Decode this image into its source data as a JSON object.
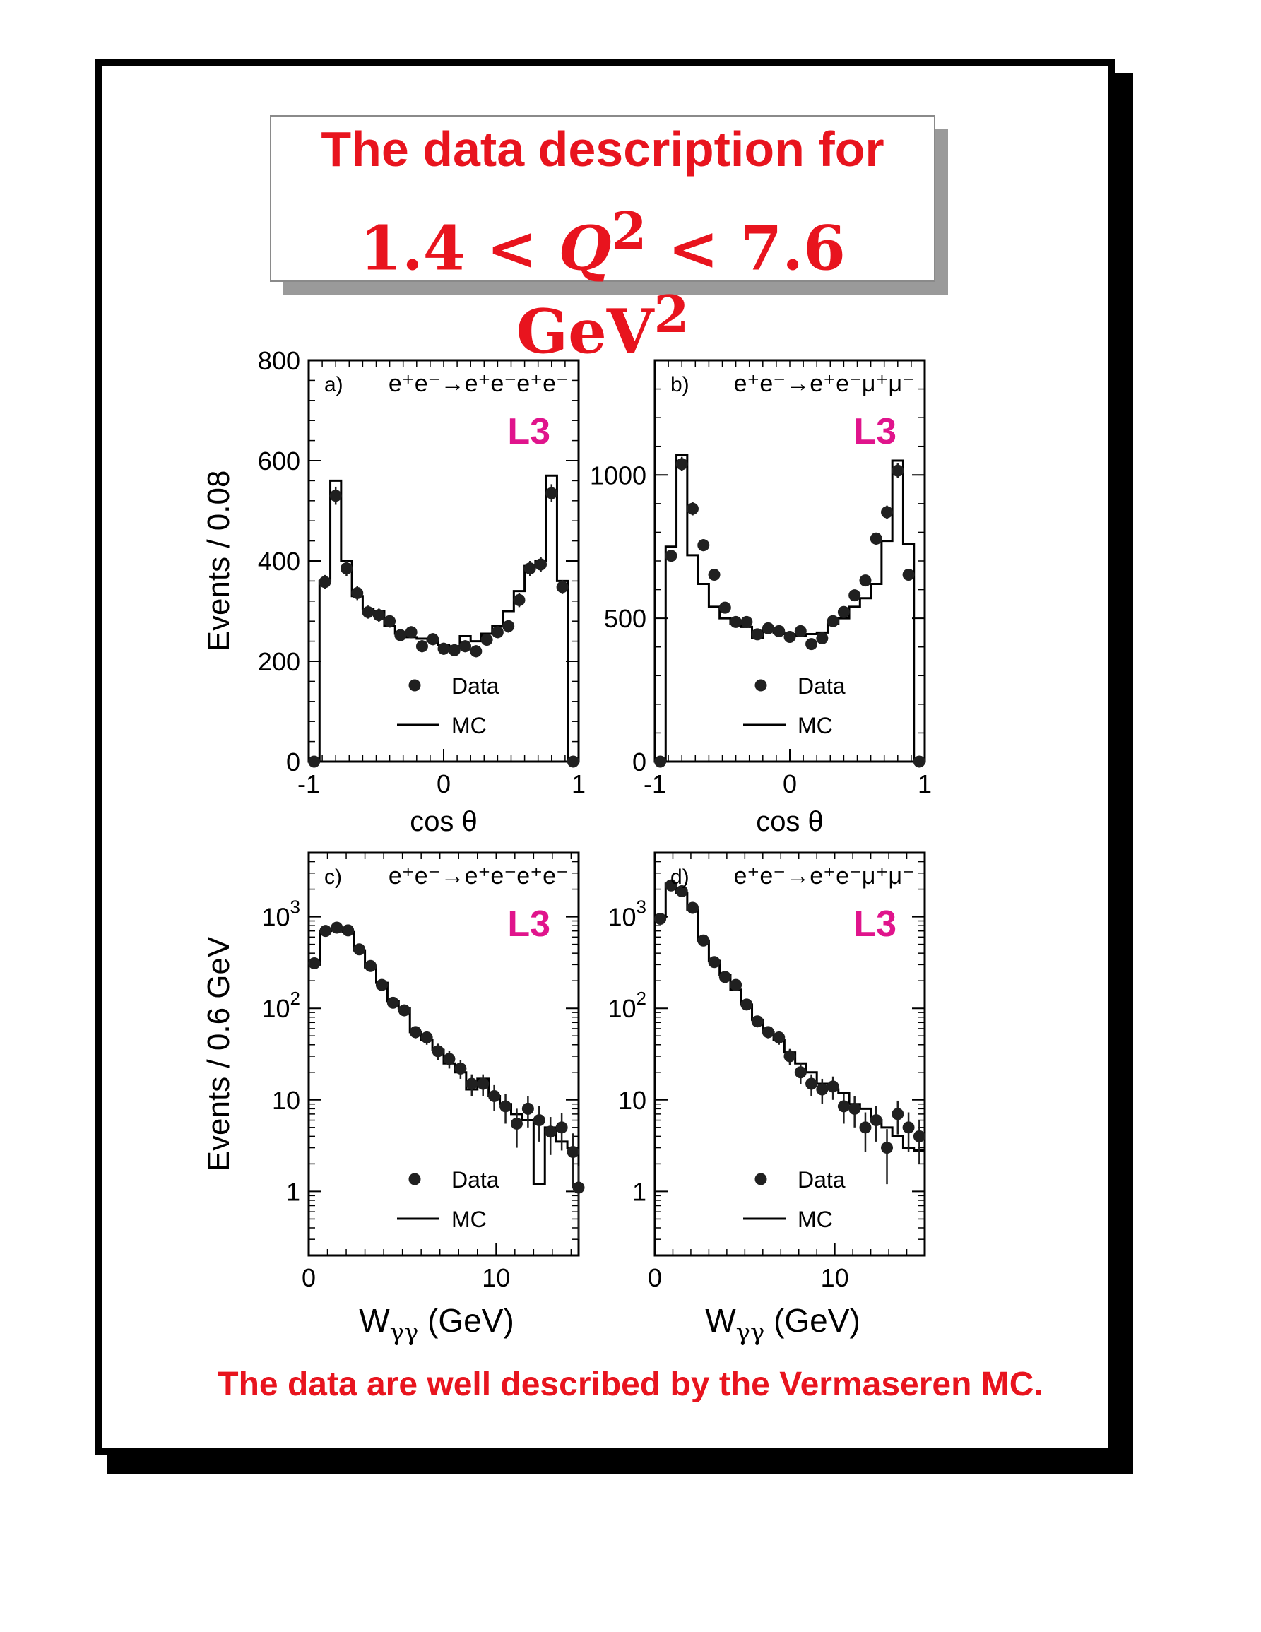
{
  "title": {
    "line1": "The data description for",
    "line2_lo": "1.4",
    "line2_var": "Q",
    "line2_hi": "7.6 GeV",
    "line2_sup": "2"
  },
  "footer": "The data are well described by the Vermaseren MC.",
  "colors": {
    "accent": "#e8141e",
    "l3": "#e0148c",
    "data": "#202020"
  },
  "legend": {
    "data_label": "Data",
    "mc_label": "MC"
  },
  "chart_data": [
    {
      "id": "a",
      "type": "scatter",
      "panel_label": "a)",
      "process": "e⁺e⁻→e⁺e⁻e⁺e⁻",
      "experiment": "L3",
      "xlabel": "cos θ",
      "ylabel": "Events / 0.08",
      "xlim": [
        -1,
        1
      ],
      "ylim": [
        0,
        800
      ],
      "yscale": "linear",
      "xticks": [
        {
          "v": -1,
          "label": "-1"
        },
        {
          "v": 0,
          "label": "0"
        },
        {
          "v": 1,
          "label": "1"
        }
      ],
      "yticks": [
        {
          "v": 0,
          "label": "0"
        },
        {
          "v": 200,
          "label": "200"
        },
        {
          "v": 400,
          "label": "400"
        },
        {
          "v": 600,
          "label": "600"
        },
        {
          "v": 800,
          "label": "800"
        }
      ],
      "legend_position": "bottom-center",
      "mc_edges": [
        -1,
        -0.92,
        -0.84,
        -0.76,
        -0.68,
        -0.6,
        -0.52,
        -0.44,
        -0.36,
        -0.28,
        -0.2,
        -0.12,
        -0.04,
        0.04,
        0.12,
        0.2,
        0.28,
        0.36,
        0.44,
        0.52,
        0.6,
        0.68,
        0.76,
        0.84,
        0.92,
        1
      ],
      "mc_values": [
        0,
        360,
        560,
        400,
        330,
        305,
        300,
        270,
        255,
        248,
        245,
        240,
        232,
        230,
        250,
        240,
        255,
        270,
        300,
        340,
        390,
        400,
        570,
        360,
        0
      ],
      "data": [
        {
          "x": -0.96,
          "y": 0,
          "e": 0
        },
        {
          "x": -0.88,
          "y": 358,
          "e": 14
        },
        {
          "x": -0.8,
          "y": 530,
          "e": 18
        },
        {
          "x": -0.72,
          "y": 385,
          "e": 15
        },
        {
          "x": -0.64,
          "y": 336,
          "e": 14
        },
        {
          "x": -0.56,
          "y": 298,
          "e": 13
        },
        {
          "x": -0.48,
          "y": 292,
          "e": 13
        },
        {
          "x": -0.4,
          "y": 280,
          "e": 13
        },
        {
          "x": -0.32,
          "y": 252,
          "e": 12
        },
        {
          "x": -0.24,
          "y": 258,
          "e": 12
        },
        {
          "x": -0.16,
          "y": 230,
          "e": 12
        },
        {
          "x": -0.08,
          "y": 244,
          "e": 12
        },
        {
          "x": 0,
          "y": 225,
          "e": 12
        },
        {
          "x": 0.08,
          "y": 222,
          "e": 12
        },
        {
          "x": 0.16,
          "y": 230,
          "e": 12
        },
        {
          "x": 0.24,
          "y": 220,
          "e": 12
        },
        {
          "x": 0.32,
          "y": 243,
          "e": 12
        },
        {
          "x": 0.4,
          "y": 258,
          "e": 12
        },
        {
          "x": 0.48,
          "y": 270,
          "e": 13
        },
        {
          "x": 0.56,
          "y": 322,
          "e": 14
        },
        {
          "x": 0.64,
          "y": 385,
          "e": 15
        },
        {
          "x": 0.72,
          "y": 393,
          "e": 15
        },
        {
          "x": 0.8,
          "y": 535,
          "e": 18
        },
        {
          "x": 0.88,
          "y": 348,
          "e": 14
        },
        {
          "x": 0.96,
          "y": 0,
          "e": 0
        }
      ]
    },
    {
      "id": "b",
      "type": "scatter",
      "panel_label": "b)",
      "process": "e⁺e⁻→e⁺e⁻μ⁺μ⁻",
      "experiment": "L3",
      "xlabel": "cos θ",
      "ylabel": "",
      "xlim": [
        -1,
        1
      ],
      "ylim": [
        0,
        1400
      ],
      "yscale": "linear",
      "xticks": [
        {
          "v": -1,
          "label": "-1"
        },
        {
          "v": 0,
          "label": "0"
        },
        {
          "v": 1,
          "label": "1"
        }
      ],
      "yticks": [
        {
          "v": 0,
          "label": "0"
        },
        {
          "v": 500,
          "label": "500"
        },
        {
          "v": 1000,
          "label": "1000"
        }
      ],
      "legend_position": "bottom-center",
      "mc_edges": [
        -1,
        -0.92,
        -0.84,
        -0.76,
        -0.68,
        -0.6,
        -0.52,
        -0.44,
        -0.36,
        -0.28,
        -0.2,
        -0.12,
        -0.04,
        0.04,
        0.12,
        0.2,
        0.28,
        0.36,
        0.44,
        0.52,
        0.6,
        0.68,
        0.76,
        0.84,
        0.92,
        1
      ],
      "mc_values": [
        0,
        750,
        1070,
        720,
        620,
        540,
        500,
        480,
        470,
        430,
        460,
        450,
        445,
        440,
        445,
        450,
        480,
        500,
        540,
        570,
        620,
        770,
        1050,
        760,
        0
      ],
      "data": [
        {
          "x": -0.96,
          "y": 0,
          "e": 0
        },
        {
          "x": -0.88,
          "y": 718,
          "e": 20
        },
        {
          "x": -0.8,
          "y": 1038,
          "e": 25
        },
        {
          "x": -0.72,
          "y": 882,
          "e": 23
        },
        {
          "x": -0.64,
          "y": 755,
          "e": 21
        },
        {
          "x": -0.56,
          "y": 652,
          "e": 19
        },
        {
          "x": -0.48,
          "y": 537,
          "e": 18
        },
        {
          "x": -0.4,
          "y": 487,
          "e": 17
        },
        {
          "x": -0.32,
          "y": 487,
          "e": 17
        },
        {
          "x": -0.24,
          "y": 444,
          "e": 16
        },
        {
          "x": -0.16,
          "y": 465,
          "e": 17
        },
        {
          "x": -0.08,
          "y": 455,
          "e": 17
        },
        {
          "x": 0,
          "y": 435,
          "e": 16
        },
        {
          "x": 0.08,
          "y": 455,
          "e": 17
        },
        {
          "x": 0.16,
          "y": 410,
          "e": 16
        },
        {
          "x": 0.24,
          "y": 430,
          "e": 16
        },
        {
          "x": 0.32,
          "y": 490,
          "e": 17
        },
        {
          "x": 0.4,
          "y": 522,
          "e": 18
        },
        {
          "x": 0.48,
          "y": 580,
          "e": 19
        },
        {
          "x": 0.56,
          "y": 632,
          "e": 19
        },
        {
          "x": 0.64,
          "y": 778,
          "e": 21
        },
        {
          "x": 0.72,
          "y": 870,
          "e": 23
        },
        {
          "x": 0.8,
          "y": 1015,
          "e": 25
        },
        {
          "x": 0.88,
          "y": 652,
          "e": 19
        },
        {
          "x": 0.96,
          "y": 0,
          "e": 0
        }
      ]
    },
    {
      "id": "c",
      "type": "scatter",
      "panel_label": "c)",
      "process": "e⁺e⁻→e⁺e⁻e⁺e⁻",
      "experiment": "L3",
      "xlabel": "Wγγ (GeV)",
      "ylabel": "Events / 0.6 GeV",
      "xlim": [
        0,
        14.4
      ],
      "ylim": [
        0.2,
        5000
      ],
      "yscale": "log",
      "xticks": [
        {
          "v": 0,
          "label": "0"
        },
        {
          "v": 10,
          "label": "10"
        }
      ],
      "yticks": [
        {
          "v": 1,
          "label": "1"
        },
        {
          "v": 10,
          "label": "10"
        },
        {
          "v": 100,
          "label": "10²"
        },
        {
          "v": 1000,
          "label": "10³"
        }
      ],
      "legend_position": "bottom-center",
      "mc_edges": [
        0,
        0.6,
        1.2,
        1.8,
        2.4,
        3.0,
        3.6,
        4.2,
        4.8,
        5.4,
        6.0,
        6.6,
        7.2,
        7.8,
        8.4,
        9.0,
        9.6,
        10.2,
        10.8,
        11.4,
        12.0,
        12.6,
        13.2,
        13.8,
        14.4
      ],
      "mc_values": [
        300,
        700,
        720,
        680,
        430,
        280,
        190,
        120,
        100,
        55,
        45,
        35,
        25,
        20,
        13,
        17,
        11,
        9,
        7,
        6,
        1.2,
        5,
        3.5,
        3
      ],
      "data": [
        {
          "x": 0.3,
          "y": 310,
          "e": 20
        },
        {
          "x": 0.9,
          "y": 700,
          "e": 30
        },
        {
          "x": 1.5,
          "y": 760,
          "e": 30
        },
        {
          "x": 2.1,
          "y": 710,
          "e": 30
        },
        {
          "x": 2.7,
          "y": 440,
          "e": 25
        },
        {
          "x": 3.3,
          "y": 290,
          "e": 20
        },
        {
          "x": 3.9,
          "y": 180,
          "e": 15
        },
        {
          "x": 4.5,
          "y": 115,
          "e": 12
        },
        {
          "x": 5.1,
          "y": 95,
          "e": 11
        },
        {
          "x": 5.7,
          "y": 55,
          "e": 8
        },
        {
          "x": 6.3,
          "y": 48,
          "e": 8
        },
        {
          "x": 6.9,
          "y": 34,
          "e": 7
        },
        {
          "x": 7.5,
          "y": 28,
          "e": 6
        },
        {
          "x": 8.1,
          "y": 22,
          "e": 5
        },
        {
          "x": 8.7,
          "y": 15,
          "e": 4
        },
        {
          "x": 9.3,
          "y": 15,
          "e": 4
        },
        {
          "x": 9.9,
          "y": 11,
          "e": 3.5
        },
        {
          "x": 10.5,
          "y": 8.5,
          "e": 3
        },
        {
          "x": 11.1,
          "y": 5.5,
          "e": 2.5
        },
        {
          "x": 11.7,
          "y": 8.0,
          "e": 3
        },
        {
          "x": 12.3,
          "y": 6.0,
          "e": 2.5
        },
        {
          "x": 12.9,
          "y": 4.5,
          "e": 2
        },
        {
          "x": 13.5,
          "y": 5.0,
          "e": 2.2
        },
        {
          "x": 14.1,
          "y": 2.7,
          "e": 1.6
        },
        {
          "x": 14.4,
          "y": 1.1,
          "e": 0.8
        }
      ]
    },
    {
      "id": "d",
      "type": "scatter",
      "panel_label": "d)",
      "process": "e⁺e⁻→e⁺e⁻μ⁺μ⁻",
      "experiment": "L3",
      "xlabel": "Wγγ (GeV)",
      "ylabel": "",
      "xlim": [
        0,
        15
      ],
      "ylim": [
        0.2,
        5000
      ],
      "yscale": "log",
      "xticks": [
        {
          "v": 0,
          "label": "0"
        },
        {
          "v": 10,
          "label": "10"
        }
      ],
      "yticks": [
        {
          "v": 1,
          "label": "1"
        },
        {
          "v": 10,
          "label": "10"
        },
        {
          "v": 100,
          "label": "10²"
        },
        {
          "v": 1000,
          "label": "10³"
        }
      ],
      "legend_position": "bottom-center",
      "mc_edges": [
        0,
        0.6,
        1.2,
        1.8,
        2.4,
        3.0,
        3.6,
        4.2,
        4.8,
        5.4,
        6.0,
        6.6,
        7.2,
        7.8,
        8.4,
        9.0,
        9.6,
        10.2,
        10.8,
        11.4,
        12.0,
        12.6,
        13.2,
        13.8,
        14.4,
        15.0
      ],
      "mc_values": [
        1000,
        2300,
        1800,
        1200,
        550,
        330,
        230,
        160,
        110,
        75,
        55,
        45,
        33,
        25,
        20,
        15,
        13,
        12,
        9,
        8,
        6,
        5,
        4,
        3,
        2.8
      ],
      "data": [
        {
          "x": 0.3,
          "y": 950,
          "e": 40
        },
        {
          "x": 0.9,
          "y": 2200,
          "e": 60
        },
        {
          "x": 1.5,
          "y": 1900,
          "e": 55
        },
        {
          "x": 2.1,
          "y": 1250,
          "e": 45
        },
        {
          "x": 2.7,
          "y": 550,
          "e": 30
        },
        {
          "x": 3.3,
          "y": 320,
          "e": 22
        },
        {
          "x": 3.9,
          "y": 220,
          "e": 18
        },
        {
          "x": 4.5,
          "y": 180,
          "e": 16
        },
        {
          "x": 5.1,
          "y": 110,
          "e": 12
        },
        {
          "x": 5.7,
          "y": 72,
          "e": 10
        },
        {
          "x": 6.3,
          "y": 55,
          "e": 8
        },
        {
          "x": 6.9,
          "y": 48,
          "e": 8
        },
        {
          "x": 7.5,
          "y": 30,
          "e": 6
        },
        {
          "x": 8.1,
          "y": 20,
          "e": 5
        },
        {
          "x": 8.7,
          "y": 15,
          "e": 4
        },
        {
          "x": 9.3,
          "y": 13,
          "e": 4
        },
        {
          "x": 9.9,
          "y": 14,
          "e": 4
        },
        {
          "x": 10.5,
          "y": 8.5,
          "e": 3
        },
        {
          "x": 11.1,
          "y": 8.0,
          "e": 3
        },
        {
          "x": 11.7,
          "y": 5.0,
          "e": 2.3
        },
        {
          "x": 12.3,
          "y": 6.0,
          "e": 2.5
        },
        {
          "x": 12.9,
          "y": 3.0,
          "e": 1.8
        },
        {
          "x": 13.5,
          "y": 7.0,
          "e": 2.8
        },
        {
          "x": 14.1,
          "y": 5.0,
          "e": 2.3
        },
        {
          "x": 14.7,
          "y": 4.0,
          "e": 2.0
        }
      ]
    }
  ]
}
